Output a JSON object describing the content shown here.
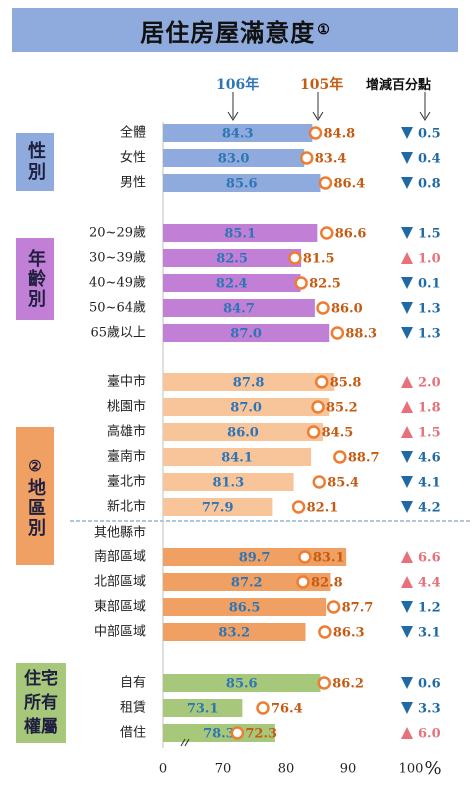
{
  "title": "居住房屋滿意度",
  "title_note": "①",
  "header": {
    "y106": "106年",
    "y105": "105年",
    "change": "增減百分點"
  },
  "colors": {
    "overall": "#8faadc",
    "age": "#c27fd6",
    "region": "#f8c49a",
    "area": "#f0a062",
    "tenure": "#a7c87a",
    "marker": "#ed7d31",
    "v106": "#2e75b6",
    "v105": "#c55a11",
    "down": "#1f6aa5",
    "up": "#e8707a"
  },
  "groups": [
    {
      "label": "性別",
      "note": "",
      "color": "#8faadc"
    },
    {
      "label": "年齡別",
      "note": "",
      "color": "#c27fd6"
    },
    {
      "label": "地區別",
      "note": "②",
      "color": "#f0a062"
    },
    {
      "label": "住宅所有權屬",
      "note": "",
      "color": "#a7c87a"
    }
  ],
  "chart_data": {
    "type": "bar",
    "xlim": [
      0,
      100
    ],
    "axis_break": true,
    "x_ticks": [
      "0",
      "70",
      "80",
      "90",
      "100"
    ],
    "x_unit": "%",
    "rows": [
      {
        "label": "全體",
        "v106": "84.3",
        "v105": "84.8",
        "dir": "down",
        "change": "0.5",
        "color": "overall"
      },
      {
        "label": "女性",
        "v106": "83.0",
        "v105": "83.4",
        "dir": "down",
        "change": "0.4",
        "color": "overall"
      },
      {
        "label": "男性",
        "v106": "85.6",
        "v105": "86.4",
        "dir": "down",
        "change": "0.8",
        "color": "overall"
      },
      {
        "label": "20~29歲",
        "v106": "85.1",
        "v105": "86.6",
        "dir": "down",
        "change": "1.5",
        "color": "age"
      },
      {
        "label": "30~39歲",
        "v106": "82.5",
        "v105": "81.5",
        "dir": "up",
        "change": "1.0",
        "color": "age"
      },
      {
        "label": "40~49歲",
        "v106": "82.4",
        "v105": "82.5",
        "dir": "down",
        "change": "0.1",
        "color": "age"
      },
      {
        "label": "50~64歲",
        "v106": "84.7",
        "v105": "86.0",
        "dir": "down",
        "change": "1.3",
        "color": "age"
      },
      {
        "label": "65歲以上",
        "v106": "87.0",
        "v105": "88.3",
        "dir": "down",
        "change": "1.3",
        "color": "age"
      },
      {
        "label": "臺中市",
        "v106": "87.8",
        "v105": "85.8",
        "dir": "up",
        "change": "2.0",
        "color": "region"
      },
      {
        "label": "桃園市",
        "v106": "87.0",
        "v105": "85.2",
        "dir": "up",
        "change": "1.8",
        "color": "region"
      },
      {
        "label": "高雄市",
        "v106": "86.0",
        "v105": "84.5",
        "dir": "up",
        "change": "1.5",
        "color": "region"
      },
      {
        "label": "臺南市",
        "v106": "84.1",
        "v105": "88.7",
        "dir": "down",
        "change": "4.6",
        "color": "region"
      },
      {
        "label": "臺北市",
        "v106": "81.3",
        "v105": "85.4",
        "dir": "down",
        "change": "4.1",
        "color": "region"
      },
      {
        "label": "新北市",
        "v106": "77.9",
        "v105": "82.1",
        "dir": "down",
        "change": "4.2",
        "color": "region"
      },
      {
        "label": "其他縣市",
        "subheader": true
      },
      {
        "label": "南部區域",
        "v106": "89.7",
        "v105": "83.1",
        "dir": "up",
        "change": "6.6",
        "color": "area"
      },
      {
        "label": "北部區域",
        "v106": "87.2",
        "v105": "82.8",
        "dir": "up",
        "change": "4.4",
        "color": "area"
      },
      {
        "label": "東部區域",
        "v106": "86.5",
        "v105": "87.7",
        "dir": "down",
        "change": "1.2",
        "color": "area"
      },
      {
        "label": "中部區域",
        "v106": "83.2",
        "v105": "86.3",
        "dir": "down",
        "change": "3.1",
        "color": "area"
      },
      {
        "label": "自有",
        "v106": "85.6",
        "v105": "86.2",
        "dir": "down",
        "change": "0.6",
        "color": "tenure"
      },
      {
        "label": "租賃",
        "v106": "73.1",
        "v105": "76.4",
        "dir": "down",
        "change": "3.3",
        "color": "tenure"
      },
      {
        "label": "借住",
        "v106": "78.3",
        "v105": "72.3",
        "dir": "up",
        "change": "6.0",
        "color": "tenure"
      }
    ]
  }
}
